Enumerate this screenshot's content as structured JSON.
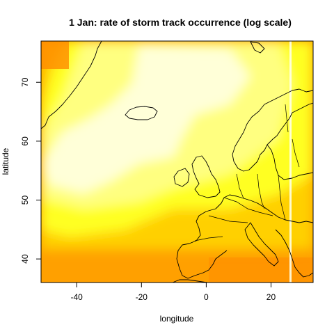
{
  "chart_data": {
    "type": "heatmap",
    "title": "1 Jan: rate of storm track occurrence (log scale)",
    "xlabel": "longitude",
    "ylabel": "latitude",
    "xlim": [
      -51,
      33
    ],
    "ylim": [
      36,
      77
    ],
    "x_ticks": [
      -40,
      -20,
      0,
      20
    ],
    "y_ticks": [
      40,
      50,
      60,
      70
    ],
    "grid": false,
    "legend": "none",
    "colors": {
      "low": "#ff8000",
      "mid_low": "#ffb000",
      "mid": "#ffdd00",
      "mid_high": "#ffff33",
      "high": "#ffff99",
      "highest": "#ffffe0",
      "frame": "#000000"
    }
  }
}
